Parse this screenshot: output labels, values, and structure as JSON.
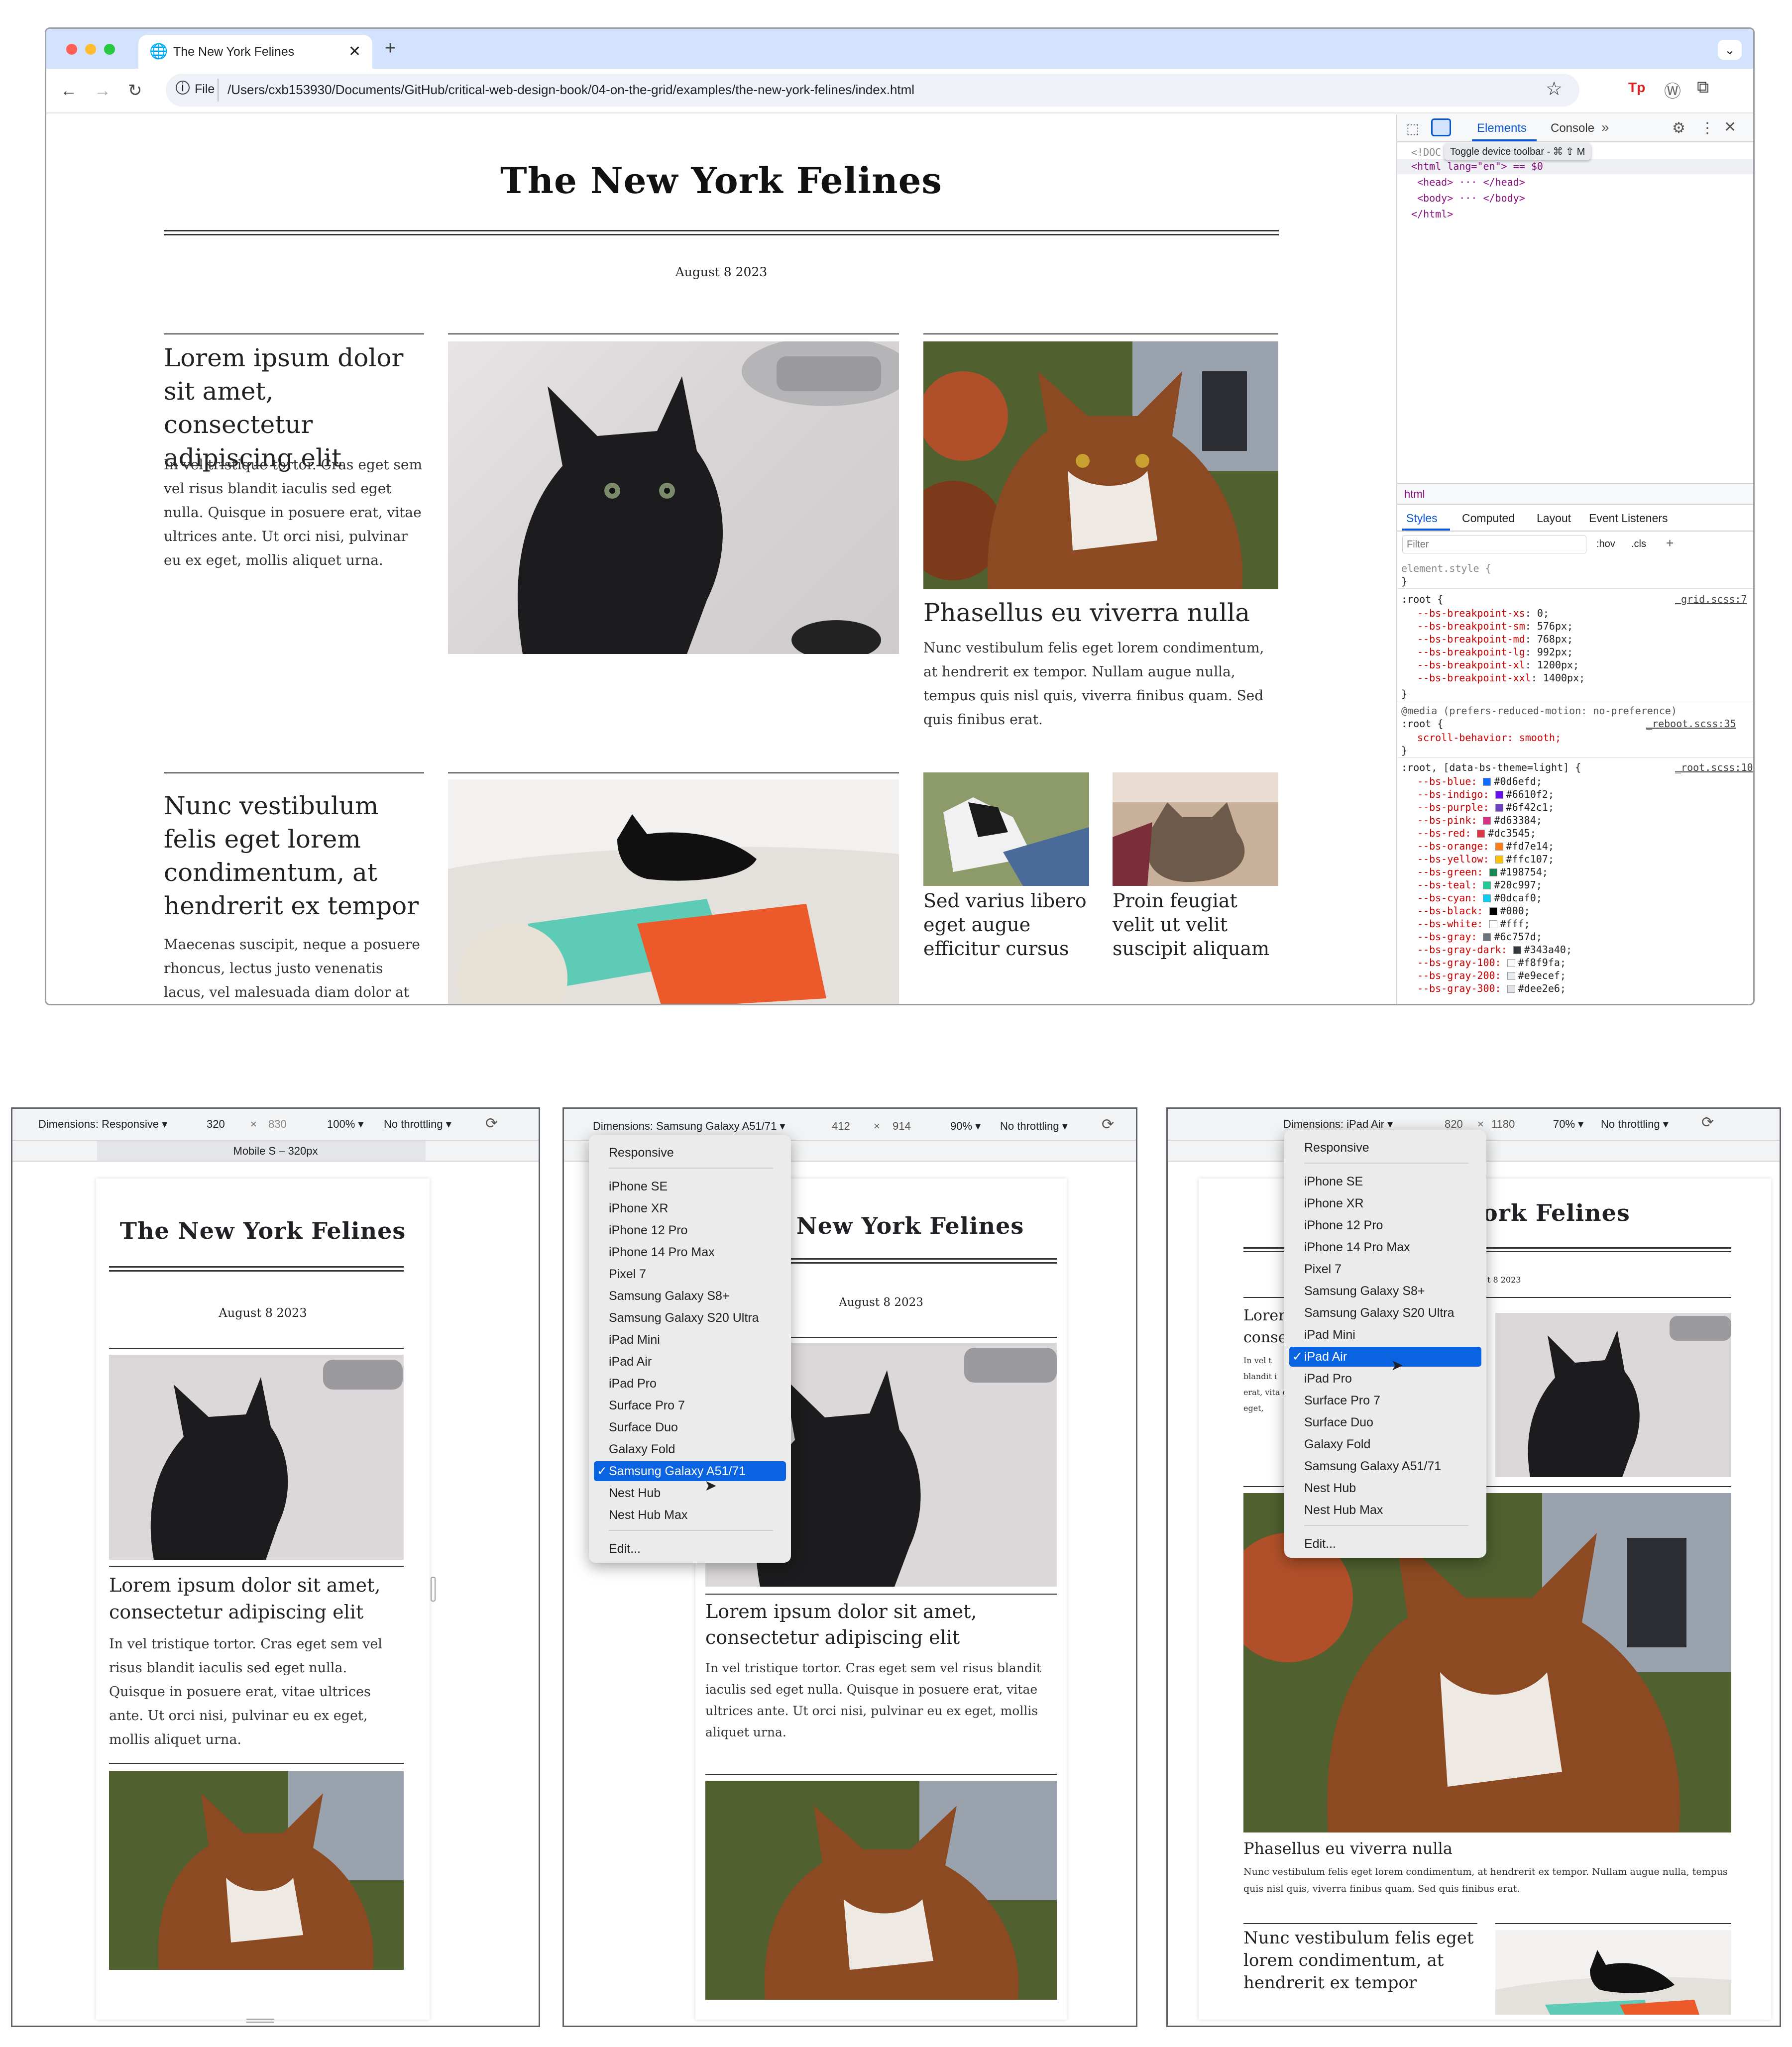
{
  "browser": {
    "tab_title": "The New York Felines",
    "new_tab": "+",
    "url_scheme": "File",
    "url": "/Users/cxb153930/Documents/GitHub/critical-web-design-book/04-on-the-grid/examples/the-new-york-felines/index.html"
  },
  "site": {
    "title": "The New York Felines",
    "date": "August 8 2023",
    "article1": {
      "headline": "Lorem ipsum dolor sit amet, consectetur adipiscing elit",
      "body": "In vel tristique tortor. Cras eget sem vel risus blandit iaculis sed eget nulla. Quisque in posuere erat, vitae ultrices ante. Ut orci nisi, pulvinar eu ex eget, mollis aliquet urna."
    },
    "article2": {
      "headline": "Phasellus eu viverra nulla",
      "body": "Nunc vestibulum felis eget lorem condimentum, at hendrerit ex tempor. Nullam augue nulla, tempus quis nisl quis, viverra finibus quam. Sed quis finibus erat."
    },
    "article3": {
      "headline": "Nunc vestibulum felis eget lorem condimentum, at hendrerit ex tempor",
      "body": "Maecenas suscipit, neque a posuere rhoncus, lectus justo venenatis lacus, vel malesuada diam dolor at sem."
    },
    "article4": {
      "headline": "Sed varius libero eget augue efficitur cursus"
    },
    "article5": {
      "headline": "Proin feugiat velit ut velit suscipit aliquam"
    }
  },
  "devtools": {
    "tabs": [
      "Elements",
      "Console"
    ],
    "more": "»",
    "tooltip": "Toggle device toolbar - ⌘ ⇧ M",
    "dom": [
      "<!DOC",
      "<html lang=\"en\"> == $0",
      "<head> ··· </head>",
      "<body> ··· </body>",
      "</html>"
    ],
    "crumb": "html",
    "subtabs": [
      "Styles",
      "Computed",
      "Layout",
      "Event Listeners"
    ],
    "filter_placeholder": "Filter",
    "hov": ":hov",
    "cls": ".cls",
    "element_style": "element.style {",
    "close_brace": "}",
    "root_sel": ":root {",
    "grid_src": "_grid.scss:7",
    "breakpoints": [
      {
        "name": "--bs-breakpoint-xs",
        "value": "0;"
      },
      {
        "name": "--bs-breakpoint-sm",
        "value": "576px;"
      },
      {
        "name": "--bs-breakpoint-md",
        "value": "768px;"
      },
      {
        "name": "--bs-breakpoint-lg",
        "value": "992px;"
      },
      {
        "name": "--bs-breakpoint-xl",
        "value": "1200px;"
      },
      {
        "name": "--bs-breakpoint-xxl",
        "value": "1400px;"
      }
    ],
    "media": "@media (prefers-reduced-motion: no-preference)",
    "reboot_src": "_reboot.scss:35",
    "scroll": "scroll-behavior: smooth;",
    "theme_sel": ":root, [data-bs-theme=light] {",
    "root_src": "_root.scss:10",
    "colors": [
      {
        "name": "--bs-blue",
        "value": "#0d6efd;",
        "swatch": "#0d6efd"
      },
      {
        "name": "--bs-indigo",
        "value": "#6610f2;",
        "swatch": "#6610f2"
      },
      {
        "name": "--bs-purple",
        "value": "#6f42c1;",
        "swatch": "#6f42c1"
      },
      {
        "name": "--bs-pink",
        "value": "#d63384;",
        "swatch": "#d63384"
      },
      {
        "name": "--bs-red",
        "value": "#dc3545;",
        "swatch": "#dc3545"
      },
      {
        "name": "--bs-orange",
        "value": "#fd7e14;",
        "swatch": "#fd7e14"
      },
      {
        "name": "--bs-yellow",
        "value": "#ffc107;",
        "swatch": "#ffc107"
      },
      {
        "name": "--bs-green",
        "value": "#198754;",
        "swatch": "#198754"
      },
      {
        "name": "--bs-teal",
        "value": "#20c997;",
        "swatch": "#20c997"
      },
      {
        "name": "--bs-cyan",
        "value": "#0dcaf0;",
        "swatch": "#0dcaf0"
      },
      {
        "name": "--bs-black",
        "value": "#000;",
        "swatch": "#000000"
      },
      {
        "name": "--bs-white",
        "value": "#fff;",
        "swatch": "#ffffff"
      },
      {
        "name": "--bs-gray",
        "value": "#6c757d;",
        "swatch": "#6c757d"
      },
      {
        "name": "--bs-gray-dark",
        "value": "#343a40;",
        "swatch": "#343a40"
      },
      {
        "name": "--bs-gray-100",
        "value": "#f8f9fa;",
        "swatch": "#f8f9fa"
      },
      {
        "name": "--bs-gray-200",
        "value": "#e9ecef;",
        "swatch": "#e9ecef"
      },
      {
        "name": "--bs-gray-300",
        "value": "#dee2e6;",
        "swatch": "#dee2e6"
      }
    ]
  },
  "panel1": {
    "dimensions": "Dimensions: Responsive ▾",
    "width": "320",
    "times": "×",
    "height": "830",
    "zoom": "100% ▾",
    "throttle": "No throttling ▾",
    "ruler_label": "Mobile S – 320px"
  },
  "panel2": {
    "dimensions": "Dimensions: Samsung Galaxy A51/71 ▾",
    "width": "412",
    "times": "×",
    "height": "914",
    "zoom": "90% ▾",
    "throttle": "No throttling ▾",
    "menu": [
      "Responsive",
      "iPhone SE",
      "iPhone XR",
      "iPhone 12 Pro",
      "iPhone 14 Pro Max",
      "Pixel 7",
      "Samsung Galaxy S8+",
      "Samsung Galaxy S20 Ultra",
      "iPad Mini",
      "iPad Air",
      "iPad Pro",
      "Surface Pro 7",
      "Surface Duo",
      "Galaxy Fold",
      "Samsung Galaxy A51/71",
      "Nest Hub",
      "Nest Hub Max",
      "Edit..."
    ],
    "selected": "Samsung Galaxy A51/71",
    "check": "✓"
  },
  "panel3": {
    "dimensions": "Dimensions: iPad Air ▾",
    "width": "820",
    "times": "×",
    "height": "1180",
    "zoom": "70% ▾",
    "throttle": "No throttling ▾",
    "selected": "iPad Air",
    "check": "✓",
    "partial_headline": "Loren conse",
    "partial_body": "In vel t blandit i erat, vita ex eget,",
    "partial_title": "ork Felines",
    "partial_date": "t 8 2023"
  },
  "colors": {
    "tabstrip": "#d3e3fd",
    "accent": "#0b57d0",
    "menu_selected": "#0a63e0"
  }
}
